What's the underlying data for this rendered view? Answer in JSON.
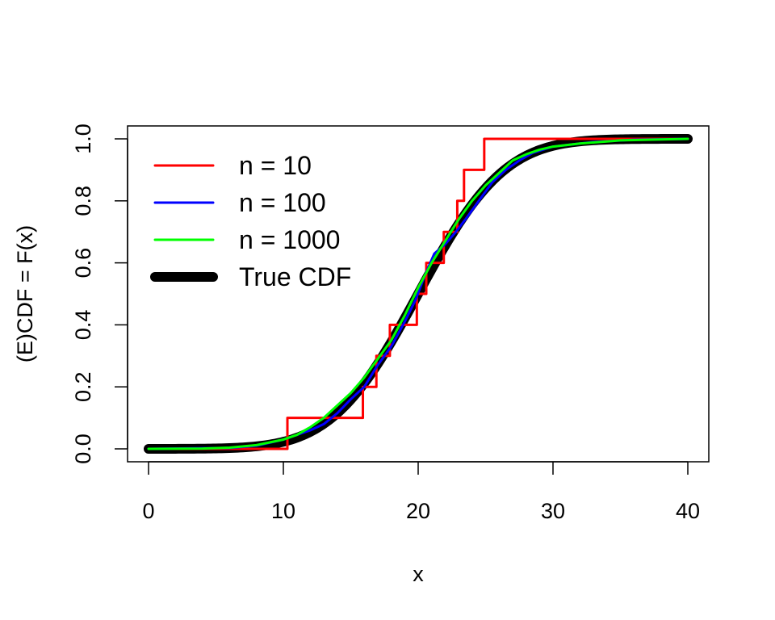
{
  "chart_data": {
    "type": "line",
    "xlabel": "x",
    "ylabel": "(E)CDF = F(x)",
    "xlim": [
      0,
      40
    ],
    "ylim": [
      0,
      1
    ],
    "x_ticks": [
      0,
      10,
      20,
      30,
      40
    ],
    "y_ticks": [
      0.0,
      0.2,
      0.4,
      0.6,
      0.8,
      1.0
    ],
    "x_tick_labels": [
      "0",
      "10",
      "20",
      "30",
      "40"
    ],
    "y_tick_labels": [
      "0.0",
      "0.2",
      "0.4",
      "0.6",
      "0.8",
      "1.0"
    ],
    "grid": false,
    "legend_position": "top-left",
    "series": [
      {
        "name": "n = 10",
        "color": "#FF0000",
        "style": "step",
        "points": [
          [
            0,
            0
          ],
          [
            10.3,
            0
          ],
          [
            10.3,
            0.1
          ],
          [
            15.9,
            0.1
          ],
          [
            15.9,
            0.2
          ],
          [
            16.9,
            0.2
          ],
          [
            16.9,
            0.3
          ],
          [
            17.9,
            0.3
          ],
          [
            17.9,
            0.4
          ],
          [
            19.9,
            0.4
          ],
          [
            19.9,
            0.5
          ],
          [
            20.6,
            0.5
          ],
          [
            20.6,
            0.6
          ],
          [
            21.9,
            0.6
          ],
          [
            21.9,
            0.7
          ],
          [
            22.9,
            0.7
          ],
          [
            22.9,
            0.8
          ],
          [
            23.4,
            0.8
          ],
          [
            23.4,
            0.9
          ],
          [
            24.9,
            0.9
          ],
          [
            24.9,
            1.0
          ],
          [
            40,
            1.0
          ]
        ]
      },
      {
        "name": "n = 100",
        "color": "#0000FF",
        "style": "line",
        "points": [
          [
            0,
            0
          ],
          [
            6,
            0.003
          ],
          [
            8,
            0.01
          ],
          [
            10,
            0.03
          ],
          [
            12,
            0.06
          ],
          [
            13,
            0.08
          ],
          [
            14,
            0.115
          ],
          [
            15,
            0.16
          ],
          [
            16,
            0.2
          ],
          [
            17,
            0.27
          ],
          [
            18,
            0.33
          ],
          [
            19,
            0.41
          ],
          [
            19.8,
            0.48
          ],
          [
            20.5,
            0.56
          ],
          [
            21.2,
            0.63
          ],
          [
            22,
            0.66
          ],
          [
            22.8,
            0.7
          ],
          [
            23.5,
            0.74
          ],
          [
            24.5,
            0.8
          ],
          [
            25.5,
            0.86
          ],
          [
            26.5,
            0.9
          ],
          [
            27.5,
            0.93
          ],
          [
            28.5,
            0.955
          ],
          [
            30,
            0.975
          ],
          [
            33,
            0.99
          ],
          [
            36,
            0.997
          ],
          [
            40,
            1.0
          ]
        ]
      },
      {
        "name": "n = 1000",
        "color": "#00FF00",
        "style": "line",
        "points": [
          [
            0,
            0
          ],
          [
            4,
            0.001
          ],
          [
            6,
            0.004
          ],
          [
            8,
            0.012
          ],
          [
            10,
            0.03
          ],
          [
            11,
            0.045
          ],
          [
            12,
            0.07
          ],
          [
            13,
            0.1
          ],
          [
            14,
            0.14
          ],
          [
            15,
            0.18
          ],
          [
            16,
            0.23
          ],
          [
            17,
            0.29
          ],
          [
            18,
            0.35
          ],
          [
            19,
            0.43
          ],
          [
            20,
            0.52
          ],
          [
            21,
            0.6
          ],
          [
            22,
            0.67
          ],
          [
            23,
            0.74
          ],
          [
            24,
            0.8
          ],
          [
            25,
            0.85
          ],
          [
            26,
            0.89
          ],
          [
            27,
            0.93
          ],
          [
            28,
            0.95
          ],
          [
            29,
            0.965
          ],
          [
            30,
            0.975
          ],
          [
            32,
            0.985
          ],
          [
            35,
            0.995
          ],
          [
            40,
            1.0
          ]
        ]
      },
      {
        "name": "True CDF",
        "color": "#000000",
        "style": "normal-cdf",
        "mean": 20,
        "sd": 5
      }
    ]
  },
  "legend": {
    "items": [
      {
        "label": "n = 10",
        "color": "#FF0000",
        "width": 3
      },
      {
        "label": "n = 100",
        "color": "#0000FF",
        "width": 3
      },
      {
        "label": "n = 1000",
        "color": "#00FF00",
        "width": 3
      },
      {
        "label": "True CDF",
        "color": "#000000",
        "width": 12
      }
    ]
  }
}
